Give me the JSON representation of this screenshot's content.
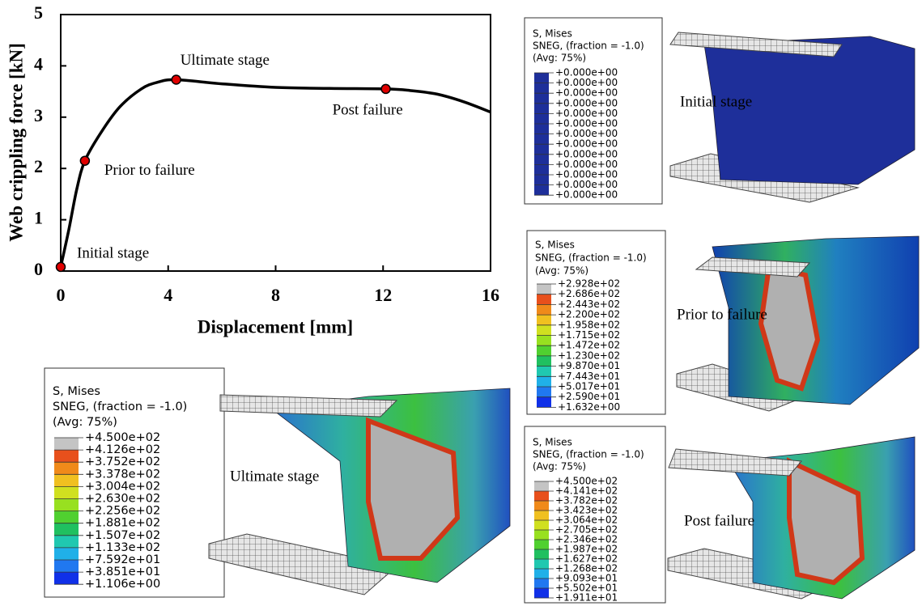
{
  "chart_data": {
    "type": "line",
    "xlabel": "Displacement [mm]",
    "ylabel": "Web crippling force  [kN]",
    "xlim": [
      0,
      16
    ],
    "xticks": [
      0,
      4,
      8,
      12,
      16
    ],
    "ylim": [
      0,
      5
    ],
    "yticks": [
      0,
      1,
      2,
      3,
      4,
      5
    ],
    "series": [
      {
        "color": "#000000",
        "x": [
          0,
          0.3,
          0.6,
          0.9,
          1.5,
          2.2,
          3.0,
          3.6,
          4.3,
          6,
          8,
          10,
          12.1,
          13,
          14,
          15,
          16
        ],
        "values": [
          0.08,
          0.8,
          1.6,
          2.15,
          2.7,
          3.2,
          3.55,
          3.68,
          3.73,
          3.65,
          3.58,
          3.56,
          3.55,
          3.52,
          3.45,
          3.3,
          3.1
        ]
      }
    ],
    "points": {
      "color": "#e00000",
      "x": [
        0,
        0.9,
        4.3,
        12.1
      ],
      "values": [
        0.08,
        2.15,
        3.73,
        3.55
      ],
      "labels": [
        "Initial stage",
        "Prior to failure",
        "Ultimate stage",
        "Post failure"
      ]
    }
  },
  "panels": [
    {
      "label": "Initial stage",
      "legend_title": [
        "S, Mises",
        "SNEG, (fraction = -1.0)",
        "(Avg: 75%)"
      ],
      "legend_values": [
        "+0.000e+00",
        "+0.000e+00",
        "+0.000e+00",
        "+0.000e+00",
        "+0.000e+00",
        "+0.000e+00",
        "+0.000e+00",
        "+0.000e+00",
        "+0.000e+00",
        "+0.000e+00",
        "+0.000e+00",
        "+0.000e+00",
        "+0.000e+00"
      ]
    },
    {
      "label": "Prior to failure",
      "legend_title": [
        "S, Mises",
        "SNEG, (fraction = -1.0)",
        "(Avg: 75%)"
      ],
      "legend_values": [
        "+2.928e+02",
        "+2.686e+02",
        "+2.443e+02",
        "+2.200e+02",
        "+1.958e+02",
        "+1.715e+02",
        "+1.472e+02",
        "+1.230e+02",
        "+9.870e+01",
        "+7.443e+01",
        "+5.017e+01",
        "+2.590e+01",
        "+1.632e+00"
      ]
    },
    {
      "label": "Ultimate stage",
      "legend_title": [
        "S, Mises",
        "SNEG, (fraction = -1.0)",
        "(Avg: 75%)"
      ],
      "legend_values": [
        "+4.500e+02",
        "+4.126e+02",
        "+3.752e+02",
        "+3.378e+02",
        "+3.004e+02",
        "+2.630e+02",
        "+2.256e+02",
        "+1.881e+02",
        "+1.507e+02",
        "+1.133e+02",
        "+7.592e+01",
        "+3.851e+01",
        "+1.106e+00"
      ]
    },
    {
      "label": "Post failure",
      "legend_title": [
        "S, Mises",
        "SNEG, (fraction = -1.0)",
        "(Avg: 75%)"
      ],
      "legend_values": [
        "+4.500e+02",
        "+4.141e+02",
        "+3.782e+02",
        "+3.423e+02",
        "+3.064e+02",
        "+2.705e+02",
        "+2.346e+02",
        "+1.987e+02",
        "+1.627e+02",
        "+1.268e+02",
        "+9.093e+01",
        "+5.502e+01",
        "+1.911e+01"
      ]
    }
  ]
}
